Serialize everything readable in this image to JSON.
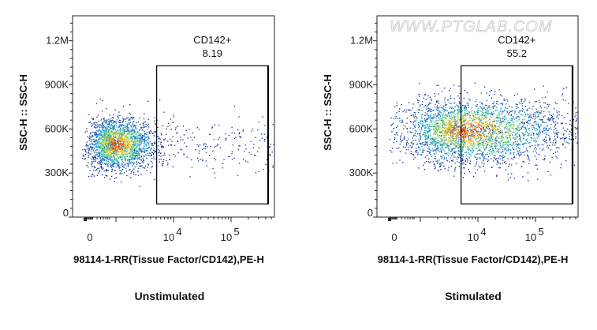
{
  "watermark": "WWW.PTGLAB.COM",
  "chart_data": [
    {
      "type": "scatter",
      "subtype": "flow-cytometry-density-plot",
      "caption": "Unstimulated",
      "xlabel": "98114-1-RR(Tissue Factor/CD142),PE-H",
      "ylabel": "SSC-H :: SSC-H",
      "x_scale": "biexponential",
      "x_ticks": [
        {
          "label": "0",
          "base": "",
          "exp": ""
        },
        {
          "label": "10",
          "base": "10",
          "exp": "4"
        },
        {
          "label": "10",
          "base": "10",
          "exp": "5"
        }
      ],
      "y_ticks": [
        "0",
        "300K",
        "600K",
        "900K",
        "1.2M"
      ],
      "y_tick_values": [
        0,
        300000,
        600000,
        900000,
        1200000
      ],
      "ylim": [
        0,
        1370000
      ],
      "gate": {
        "name": "CD142+",
        "percent": "8.19",
        "x_range": [
          5100,
          440000
        ],
        "y_range": [
          90000,
          1030000
        ]
      },
      "color_scale": [
        "#0a1e8c",
        "#1f9bd8",
        "#4fd2a0",
        "#c8e03c",
        "#f0a020",
        "#d02010"
      ]
    },
    {
      "type": "scatter",
      "subtype": "flow-cytometry-density-plot",
      "caption": "Stimulated",
      "xlabel": "98114-1-RR(Tissue Factor/CD142),PE-H",
      "ylabel": "SSC-H :: SSC-H",
      "x_scale": "biexponential",
      "x_ticks": [
        {
          "label": "0",
          "base": "",
          "exp": ""
        },
        {
          "label": "10",
          "base": "10",
          "exp": "4"
        },
        {
          "label": "10",
          "base": "10",
          "exp": "5"
        }
      ],
      "y_ticks": [
        "0",
        "300K",
        "600K",
        "900K",
        "1.2M"
      ],
      "y_tick_values": [
        0,
        300000,
        600000,
        900000,
        1200000
      ],
      "ylim": [
        0,
        1370000
      ],
      "gate": {
        "name": "CD142+",
        "percent": "55.2",
        "x_range": [
          5100,
          440000
        ],
        "y_range": [
          90000,
          1030000
        ]
      },
      "color_scale": [
        "#0a1e8c",
        "#1f9bd8",
        "#4fd2a0",
        "#c8e03c",
        "#f0a020",
        "#d02010"
      ]
    }
  ]
}
